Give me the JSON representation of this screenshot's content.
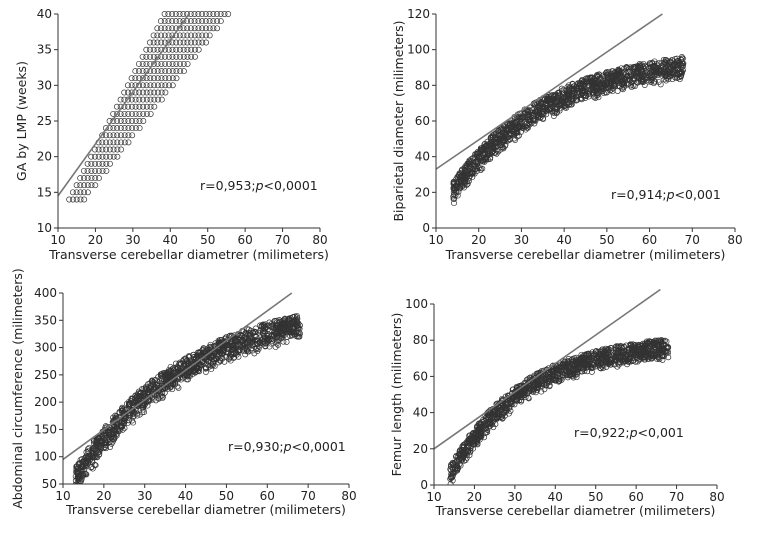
{
  "chart_data": [
    {
      "type": "scatter",
      "xlabel": "Transverse cerebellar diametrer (milimeters)",
      "ylabel": "GA by LMP (weeks)",
      "xlim": [
        10,
        80
      ],
      "ylim": [
        10,
        40
      ],
      "xticks": [
        10,
        20,
        30,
        40,
        50,
        60,
        70,
        80
      ],
      "yticks": [
        10,
        15,
        20,
        25,
        30,
        35,
        40
      ],
      "annotation": {
        "r": "r=0,953;",
        "p": "p",
        "rest": "<0,0001"
      },
      "fit_line": {
        "x": [
          10,
          45
        ],
        "y": [
          14.5,
          40
        ]
      },
      "grid": false,
      "points_model": {
        "kind": "ga",
        "ga_range": [
          14,
          40
        ],
        "tcd_at_ga14": [
          13,
          17
        ],
        "tcd_slope": [
          0.98,
          1.48
        ]
      }
    },
    {
      "type": "scatter",
      "xlabel": "Transverse cerebellar diametrer (milimeters)",
      "ylabel": "Biparietal diameter (milimeters)",
      "xlim": [
        10,
        80
      ],
      "ylim": [
        0,
        120
      ],
      "xticks": [
        10,
        20,
        30,
        40,
        50,
        60,
        70,
        80
      ],
      "yticks": [
        0,
        20,
        40,
        60,
        80,
        100,
        120
      ],
      "annotation": {
        "r": "r=0,914;",
        "p": "p",
        "rest": "<0,001"
      },
      "fit_line": {
        "x": [
          10,
          63
        ],
        "y": [
          33,
          120
        ]
      },
      "grid": false,
      "points_model": {
        "kind": "curve",
        "x_range": [
          14,
          68
        ],
        "plateau": 100,
        "base_y": 23,
        "rate": 0.045,
        "scatter": 14
      }
    },
    {
      "type": "scatter",
      "xlabel": "Transverse cerebellar diametrer (milimeters)",
      "ylabel": "Abdominal circumference (milimeters)",
      "xlim": [
        10,
        80
      ],
      "ylim": [
        50,
        400
      ],
      "xticks": [
        10,
        20,
        30,
        40,
        50,
        60,
        70,
        80
      ],
      "yticks": [
        50,
        100,
        150,
        200,
        250,
        300,
        350,
        400
      ],
      "annotation": {
        "r": "r=0,930;",
        "p": "p",
        "rest": "<0,0001"
      },
      "fit_line": {
        "x": [
          10,
          66
        ],
        "y": [
          95,
          400
        ]
      },
      "grid": false,
      "points_model": {
        "kind": "curve",
        "x_range": [
          13,
          68
        ],
        "plateau": 395,
        "base_y": 70,
        "rate": 0.036,
        "scatter": 50
      }
    },
    {
      "type": "scatter",
      "xlabel": "Transverse cerebellar diametrer (milimeters)",
      "ylabel": "Femur length (milimeters)",
      "xlim": [
        10,
        80
      ],
      "ylim": [
        0,
        100
      ],
      "xticks": [
        10,
        20,
        30,
        40,
        50,
        60,
        70,
        80
      ],
      "yticks": [
        0,
        20,
        40,
        60,
        80,
        100
      ],
      "annotation": {
        "r": "r=0,922;",
        "p": "p",
        "rest": "<0,001"
      },
      "fit_line": {
        "x": [
          10,
          66
        ],
        "y": [
          20,
          108
        ]
      },
      "grid": false,
      "points_model": {
        "kind": "curve",
        "x_range": [
          14,
          68
        ],
        "plateau": 82,
        "base_y": 8,
        "rate": 0.055,
        "scatter": 12
      }
    }
  ]
}
